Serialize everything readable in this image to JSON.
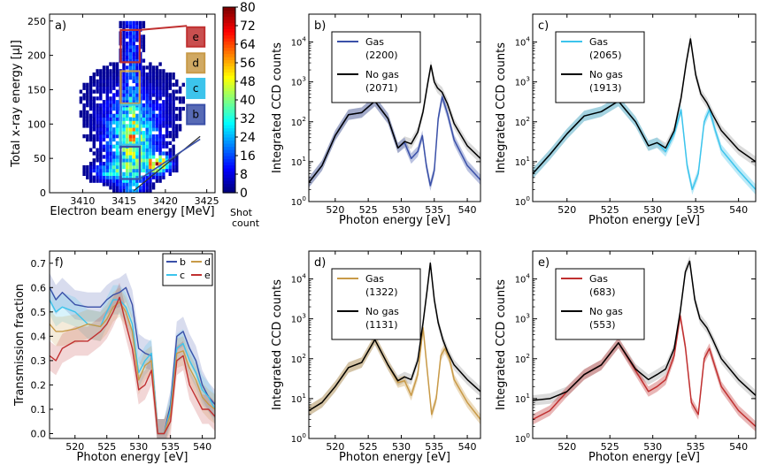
{
  "chart_data": [
    {
      "panel": "a)",
      "type": "heatmap",
      "xlabel": "Electron beam energy [MeV]",
      "ylabel": "Total x-ray energy [μJ]",
      "xlim": [
        3406,
        3426
      ],
      "ylim": [
        0,
        260
      ],
      "xticks": [
        3410,
        3415,
        3420,
        3425
      ],
      "yticks": [
        0,
        50,
        100,
        150,
        200,
        250
      ],
      "colorbar": {
        "label": "Shot count",
        "ticks": [
          0,
          8,
          16,
          24,
          32,
          40,
          48,
          56,
          64,
          72,
          80
        ],
        "range": [
          0,
          80
        ]
      },
      "bins": [
        {
          "label": "e",
          "color": "#c03030"
        },
        {
          "label": "d",
          "color": "#c89a48"
        },
        {
          "label": "c",
          "color": "#3cc4ec"
        },
        {
          "label": "b",
          "color": "#3a50a8"
        }
      ]
    },
    {
      "panel": "b)",
      "type": "line",
      "xlabel": "Photon energy [eV]",
      "ylabel": "Integrated CCD counts",
      "xlim": [
        516,
        542
      ],
      "ylim": [
        1,
        50000
      ],
      "yscale": "log",
      "xticks": [
        520,
        525,
        530,
        535,
        540
      ],
      "yticks": [
        "10^0",
        "10^1",
        "10^2",
        "10^3",
        "10^4"
      ],
      "series": [
        {
          "name": "Gas",
          "count": "(2200)",
          "color": "#3a50a8",
          "x": [
            516,
            518,
            520,
            522,
            524,
            526,
            528,
            529.5,
            530.5,
            531.5,
            532.5,
            533.2,
            533.8,
            534.4,
            535,
            535.6,
            536.2,
            537,
            538,
            540,
            542
          ],
          "y": [
            3,
            8,
            45,
            150,
            170,
            330,
            120,
            22,
            30,
            12,
            18,
            45,
            8,
            2.5,
            6,
            120,
            420,
            160,
            35,
            8,
            3.5
          ]
        },
        {
          "name": "No gas",
          "count": "(2071)",
          "color": "#000000",
          "x": [
            516,
            518,
            520,
            522,
            524,
            526,
            528,
            529.5,
            530.5,
            531.5,
            532.5,
            533.3,
            534,
            534.5,
            535,
            535.5,
            536.2,
            537,
            538,
            540,
            542
          ],
          "y": [
            3,
            8,
            45,
            150,
            170,
            330,
            120,
            22,
            32,
            28,
            55,
            180,
            900,
            2600,
            1000,
            700,
            550,
            280,
            90,
            25,
            12
          ]
        }
      ]
    },
    {
      "panel": "c)",
      "type": "line",
      "xlabel": "Photon energy [eV]",
      "ylabel": "Integrated CCD counts",
      "xlim": [
        516,
        542
      ],
      "ylim": [
        1,
        50000
      ],
      "yscale": "log",
      "xticks": [
        520,
        525,
        530,
        535,
        540
      ],
      "yticks": [
        "10^0",
        "10^1",
        "10^2",
        "10^3",
        "10^4"
      ],
      "series": [
        {
          "name": "Gas",
          "count": "(2065)",
          "color": "#3cc4ec",
          "x": [
            516,
            518,
            520,
            522,
            524,
            526,
            528,
            529.5,
            530.5,
            531.5,
            532.5,
            533.3,
            534,
            534.6,
            535.3,
            536,
            536.6,
            537.3,
            538,
            540,
            542
          ],
          "y": [
            5,
            15,
            50,
            140,
            180,
            330,
            100,
            25,
            30,
            18,
            50,
            200,
            8,
            2,
            5,
            100,
            200,
            60,
            20,
            6,
            2
          ]
        },
        {
          "name": "No gas",
          "count": "(1913)",
          "color": "#000000",
          "x": [
            516,
            518,
            520,
            522,
            524,
            526,
            528,
            529.5,
            530.5,
            531.5,
            532.5,
            533.3,
            533.9,
            534.4,
            535,
            535.6,
            536.3,
            537,
            538,
            540,
            542
          ],
          "y": [
            5,
            15,
            50,
            140,
            180,
            330,
            100,
            25,
            30,
            22,
            60,
            400,
            3000,
            12000,
            1500,
            500,
            300,
            150,
            60,
            20,
            10
          ]
        }
      ]
    },
    {
      "panel": "f)",
      "type": "line",
      "xlabel": "Photon energy [eV]",
      "ylabel": "Transmission fraction",
      "xlim": [
        516,
        542
      ],
      "ylim": [
        -0.02,
        0.75
      ],
      "xticks": [
        520,
        525,
        530,
        535,
        540
      ],
      "yticks": [
        "0.0",
        "0.1",
        "0.2",
        "0.3",
        "0.4",
        "0.5",
        "0.6",
        "0.7"
      ],
      "series": [
        {
          "name": "b",
          "color": "#3a50a8",
          "x": [
            516,
            517,
            518,
            520,
            522,
            524,
            525,
            526,
            527,
            528,
            529,
            530,
            531,
            532,
            533,
            534,
            535,
            536,
            537,
            538,
            539,
            540,
            541,
            542
          ],
          "y": [
            0.6,
            0.55,
            0.58,
            0.53,
            0.52,
            0.52,
            0.55,
            0.57,
            0.58,
            0.6,
            0.53,
            0.35,
            0.33,
            0.32,
            0.0,
            0.0,
            0.12,
            0.4,
            0.42,
            0.35,
            0.3,
            0.2,
            0.15,
            0.12
          ]
        },
        {
          "name": "c",
          "color": "#3cc4ec",
          "x": [
            516,
            517,
            518,
            520,
            522,
            524,
            525,
            526,
            527,
            528,
            529,
            530,
            531,
            532,
            533,
            534,
            535,
            536,
            537,
            538,
            539,
            540,
            541,
            542
          ],
          "y": [
            0.55,
            0.5,
            0.52,
            0.5,
            0.45,
            0.44,
            0.5,
            0.55,
            0.55,
            0.52,
            0.45,
            0.25,
            0.3,
            0.33,
            0.0,
            0.0,
            0.1,
            0.35,
            0.37,
            0.3,
            0.25,
            0.18,
            0.15,
            0.1
          ]
        },
        {
          "name": "d",
          "color": "#c89a48",
          "x": [
            516,
            517,
            518,
            520,
            522,
            524,
            525,
            526,
            527,
            528,
            529,
            530,
            531,
            532,
            533,
            534,
            535,
            536,
            537,
            538,
            539,
            540,
            541,
            542
          ],
          "y": [
            0.45,
            0.42,
            0.42,
            0.43,
            0.45,
            0.44,
            0.47,
            0.52,
            0.54,
            0.5,
            0.42,
            0.22,
            0.28,
            0.3,
            0.0,
            0.0,
            0.08,
            0.33,
            0.34,
            0.27,
            0.22,
            0.15,
            0.12,
            0.1
          ]
        },
        {
          "name": "e",
          "color": "#c03030",
          "x": [
            516,
            517,
            518,
            520,
            522,
            524,
            525,
            526,
            527,
            528,
            529,
            530,
            531,
            532,
            533,
            534,
            535,
            536,
            537,
            538,
            539,
            540,
            541,
            542
          ],
          "y": [
            0.32,
            0.3,
            0.35,
            0.38,
            0.38,
            0.42,
            0.45,
            0.5,
            0.56,
            0.45,
            0.35,
            0.18,
            0.2,
            0.26,
            0.0,
            0.0,
            0.05,
            0.3,
            0.32,
            0.2,
            0.15,
            0.1,
            0.1,
            0.07
          ]
        }
      ]
    },
    {
      "panel": "d)",
      "type": "line",
      "xlabel": "Photon energy [eV]",
      "ylabel": "Integrated CCD counts",
      "xlim": [
        516,
        542
      ],
      "ylim": [
        1,
        50000
      ],
      "yscale": "log",
      "xticks": [
        520,
        525,
        530,
        535,
        540
      ],
      "yticks": [
        "10^0",
        "10^1",
        "10^2",
        "10^3",
        "10^4"
      ],
      "series": [
        {
          "name": "Gas",
          "count": "(1322)",
          "color": "#c89a48",
          "x": [
            516,
            518,
            520,
            522,
            524,
            526,
            528,
            529.5,
            530.5,
            531.5,
            532.5,
            533.3,
            534,
            534.6,
            535.3,
            536,
            536.6,
            537.3,
            538,
            540,
            542
          ],
          "y": [
            5,
            8,
            20,
            60,
            80,
            300,
            70,
            25,
            28,
            12,
            40,
            600,
            40,
            4,
            10,
            120,
            180,
            100,
            30,
            8,
            3
          ]
        },
        {
          "name": "No gas",
          "count": "(1131)",
          "color": "#000000",
          "x": [
            516,
            518,
            520,
            522,
            524,
            526,
            528,
            529.5,
            530.5,
            531.5,
            532.5,
            533.3,
            533.9,
            534.4,
            535,
            535.6,
            536.3,
            537,
            538,
            540,
            542
          ],
          "y": [
            5,
            8,
            20,
            60,
            80,
            300,
            70,
            28,
            35,
            30,
            90,
            800,
            5000,
            25000,
            3000,
            800,
            300,
            150,
            70,
            30,
            15
          ]
        }
      ]
    },
    {
      "panel": "e)",
      "type": "line",
      "xlabel": "Photon energy [eV]",
      "ylabel": "Integrated CCD counts",
      "xlim": [
        516,
        542
      ],
      "ylim": [
        1,
        50000
      ],
      "yscale": "log",
      "xticks": [
        520,
        525,
        530,
        535,
        540
      ],
      "yticks": [
        "10^0",
        "10^1",
        "10^2",
        "10^3",
        "10^4"
      ],
      "series": [
        {
          "name": "Gas",
          "count": "(683)",
          "color": "#c03030",
          "x": [
            516,
            518,
            520,
            522,
            524,
            526,
            528,
            529.5,
            530.5,
            531.5,
            532.5,
            533.2,
            533.8,
            534.5,
            535.3,
            536,
            536.6,
            537.3,
            538,
            540,
            542
          ],
          "y": [
            3,
            5,
            15,
            40,
            70,
            250,
            50,
            15,
            20,
            30,
            120,
            1200,
            200,
            8,
            4,
            100,
            180,
            60,
            20,
            5,
            2
          ]
        },
        {
          "name": "No gas",
          "count": "(553)",
          "color": "#000000",
          "x": [
            516,
            518,
            520,
            522,
            524,
            526,
            528,
            529.5,
            530.5,
            531.5,
            532.5,
            533.2,
            533.8,
            534.3,
            534.9,
            535.5,
            536.3,
            537,
            538,
            540,
            542
          ],
          "y": [
            9,
            10,
            15,
            40,
            70,
            250,
            55,
            30,
            40,
            55,
            180,
            1500,
            15000,
            28000,
            3000,
            1000,
            600,
            300,
            100,
            30,
            12
          ]
        }
      ]
    }
  ]
}
